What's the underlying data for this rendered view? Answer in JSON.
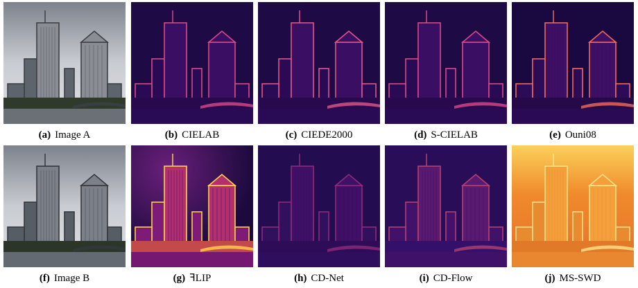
{
  "panels": [
    {
      "label": "(a)",
      "name": "Image A"
    },
    {
      "label": "(b)",
      "name": "CIELAB"
    },
    {
      "label": "(c)",
      "name": "CIEDE2000"
    },
    {
      "label": "(d)",
      "name": "S-CIELAB"
    },
    {
      "label": "(e)",
      "name": "Ouni08"
    },
    {
      "label": "(f)",
      "name": "Image B"
    },
    {
      "label": "(g)",
      "name": "ꟻLIP"
    },
    {
      "label": "(h)",
      "name": "CD-Net"
    },
    {
      "label": "(i)",
      "name": "CD-Flow"
    },
    {
      "label": "(j)",
      "name": "MS-SWD"
    }
  ]
}
